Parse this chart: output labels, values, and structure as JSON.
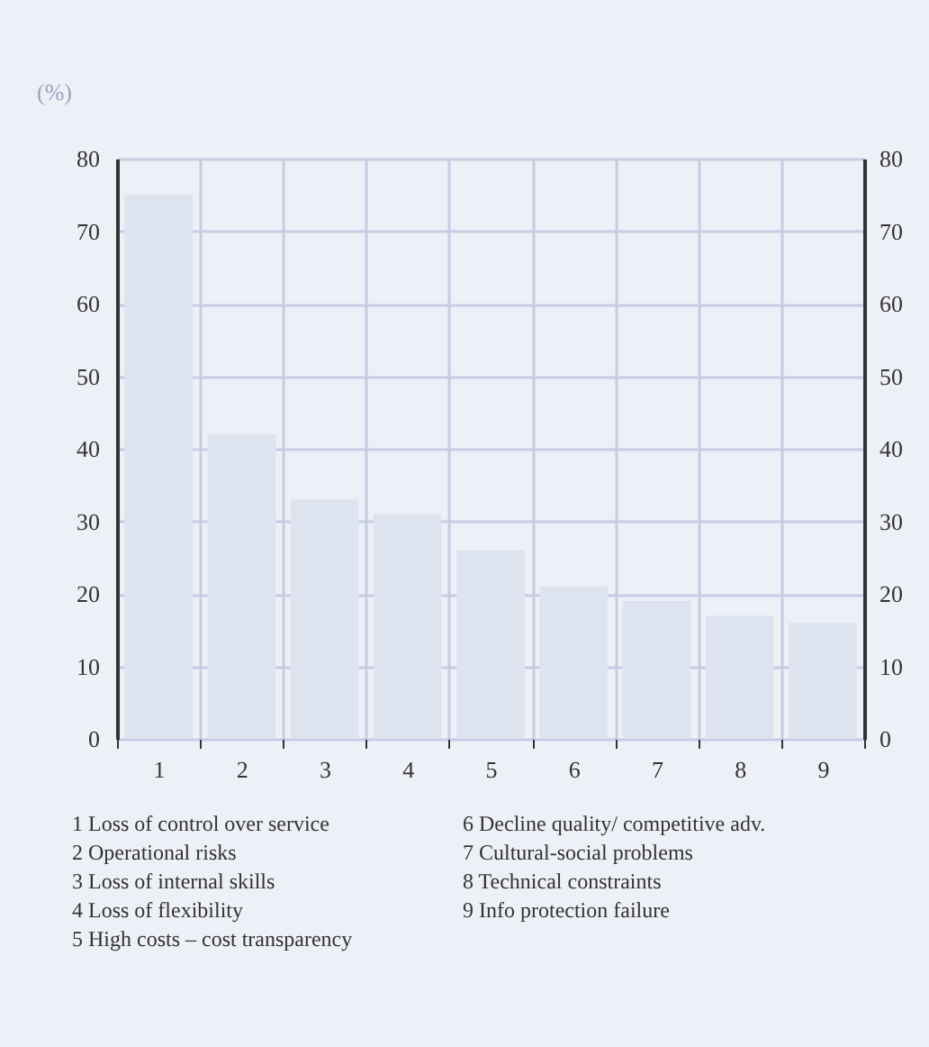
{
  "chart_data": {
    "type": "bar",
    "ylabel": "(%)",
    "categories": [
      "1",
      "2",
      "3",
      "4",
      "5",
      "6",
      "7",
      "8",
      "9"
    ],
    "values": [
      75,
      42,
      33,
      31,
      26,
      21,
      19,
      17,
      16
    ],
    "color": "#dde3ef",
    "ylim": [
      0,
      80
    ],
    "yticks": [
      0,
      10,
      20,
      30,
      40,
      50,
      60,
      70,
      80
    ],
    "y2lim": [
      0,
      80
    ],
    "y2ticks": [
      0,
      10,
      20,
      30,
      40,
      50,
      60,
      70,
      80
    ],
    "grid": true,
    "annotations": [
      "1 Loss of control over service",
      "2 Operational risks",
      "3 Loss of internal skills",
      "4 Loss of flexibility",
      "5 High costs – cost transparency",
      "6 Decline quality/ competitive adv.",
      "7 Cultural-social problems",
      "8 Technical constraints",
      "9 Info protection failure"
    ]
  }
}
